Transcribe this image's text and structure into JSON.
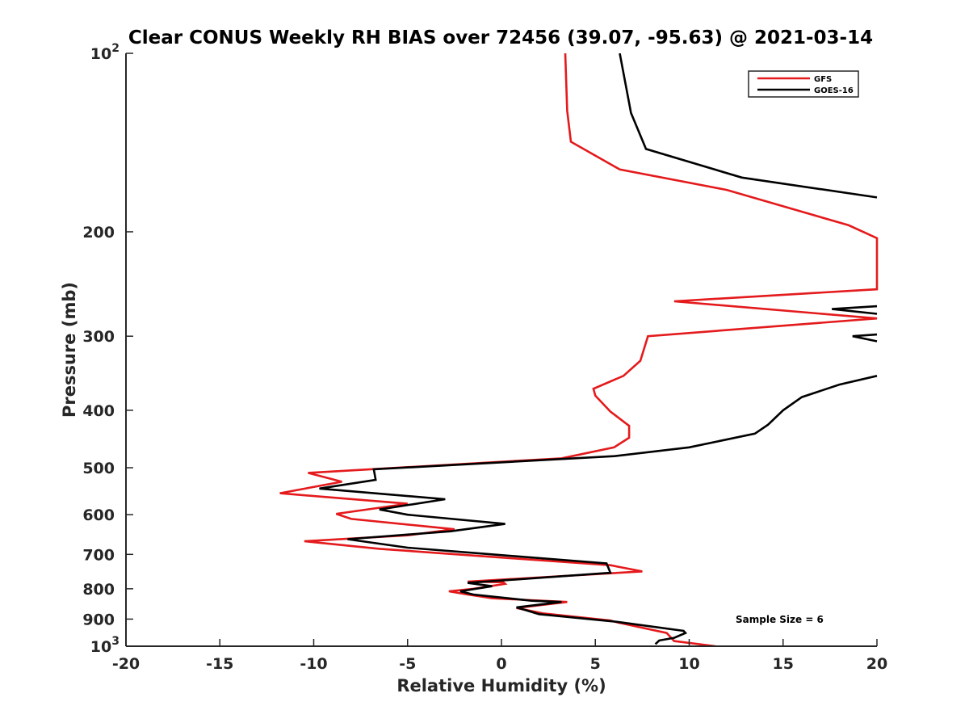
{
  "chart_data": {
    "type": "line",
    "title": "Clear CONUS Weekly RH BIAS over 72456 (39.07, -95.63) @ 2021-03-14",
    "xlabel": "Relative Humidity (%)",
    "ylabel": "Pressure (mb)",
    "xlim": [
      -20,
      20
    ],
    "ylim": [
      100,
      1000
    ],
    "yscale": "log",
    "y_reversed": true,
    "grid": false,
    "legend_position": "top-right",
    "x_ticks": [
      -20,
      -15,
      -10,
      -5,
      0,
      5,
      10,
      15,
      20
    ],
    "x_tick_labels": [
      "-20",
      "-15",
      "-10",
      "-5",
      "0",
      "5",
      "10",
      "15",
      "20"
    ],
    "y_ticks": [
      100,
      200,
      300,
      400,
      500,
      600,
      700,
      800,
      900,
      1000
    ],
    "y_tick_labels": [
      {
        "base": "10",
        "exp": "2"
      },
      {
        "base": "200",
        "exp": ""
      },
      {
        "base": "300",
        "exp": ""
      },
      {
        "base": "400",
        "exp": ""
      },
      {
        "base": "500",
        "exp": ""
      },
      {
        "base": "600",
        "exp": ""
      },
      {
        "base": "700",
        "exp": ""
      },
      {
        "base": "800",
        "exp": ""
      },
      {
        "base": "900",
        "exp": ""
      },
      {
        "base": "10",
        "exp": "3"
      }
    ],
    "annotation": "Sample Size = 6",
    "series": [
      {
        "name": "GFS",
        "color": "#e41a1c",
        "points": [
          [
            11.4,
            1000
          ],
          [
            9.2,
            980
          ],
          [
            8.8,
            950
          ],
          [
            6.2,
            912
          ],
          [
            5.8,
            905
          ],
          [
            2.2,
            880
          ],
          [
            0.8,
            862
          ],
          [
            3.5,
            842
          ],
          [
            -0.5,
            830
          ],
          [
            -1.8,
            818
          ],
          [
            -2.8,
            808
          ],
          [
            -1.5,
            800
          ],
          [
            0.2,
            785
          ],
          [
            0.1,
            780
          ],
          [
            -1.8,
            778
          ],
          [
            7.5,
            748
          ],
          [
            5.8,
            730
          ],
          [
            -1.0,
            705
          ],
          [
            -6.5,
            685
          ],
          [
            -10.5,
            665
          ],
          [
            -5.0,
            650
          ],
          [
            -2.5,
            635
          ],
          [
            -8.0,
            610
          ],
          [
            -8.8,
            598
          ],
          [
            -5.0,
            575
          ],
          [
            -11.8,
            552
          ],
          [
            -8.5,
            528
          ],
          [
            -10.3,
            510
          ],
          [
            3.2,
            482
          ],
          [
            6.0,
            462
          ],
          [
            6.8,
            445
          ],
          [
            6.8,
            425
          ],
          [
            5.8,
            402
          ],
          [
            5.0,
            378
          ],
          [
            4.9,
            368
          ],
          [
            6.5,
            350
          ],
          [
            7.4,
            330
          ],
          [
            7.8,
            300
          ],
          [
            20.0,
            280
          ],
          [
            9.2,
            262
          ],
          [
            20.0,
            250
          ],
          [
            20.0,
            205
          ],
          [
            18.5,
            195
          ],
          [
            12.0,
            170
          ],
          [
            6.3,
            157
          ],
          [
            3.7,
            141
          ],
          [
            3.5,
            125
          ],
          [
            3.4,
            100
          ]
        ]
      },
      {
        "name": "GOES-16",
        "color": "#000000",
        "points": [
          [
            8.2,
            992
          ],
          [
            8.4,
            978
          ],
          [
            9.2,
            968
          ],
          [
            9.8,
            950
          ],
          [
            9.7,
            942
          ],
          [
            6.2,
            910
          ],
          [
            2.0,
            883
          ],
          [
            0.8,
            860
          ],
          [
            3.2,
            842
          ],
          [
            1.6,
            838
          ],
          [
            -1.5,
            818
          ],
          [
            -2.2,
            808
          ],
          [
            -0.5,
            792
          ],
          [
            -1.8,
            782
          ],
          [
            5.8,
            752
          ],
          [
            5.6,
            725
          ],
          [
            -0.5,
            700
          ],
          [
            -5.0,
            682
          ],
          [
            -8.2,
            660
          ],
          [
            -2.7,
            640
          ],
          [
            0.2,
            622
          ],
          [
            -5.0,
            600
          ],
          [
            -6.5,
            588
          ],
          [
            -3.0,
            565
          ],
          [
            -9.7,
            542
          ],
          [
            -6.7,
            524
          ],
          [
            -6.8,
            503
          ],
          [
            6.0,
            478
          ],
          [
            10.0,
            462
          ],
          [
            13.5,
            438
          ],
          [
            14.2,
            423
          ],
          [
            15.0,
            400
          ],
          [
            16.0,
            380
          ],
          [
            18.0,
            362
          ],
          [
            20.0,
            350
          ]
        ]
      },
      {
        "name": "GOES-16",
        "color": "#000000",
        "points": [
          [
            20.0,
            267
          ],
          [
            17.6,
            270
          ],
          [
            20.0,
            275
          ]
        ]
      },
      {
        "name": "GOES-16",
        "color": "#000000",
        "points": [
          [
            20.0,
            298
          ],
          [
            18.7,
            300
          ],
          [
            20.0,
            306
          ]
        ]
      },
      {
        "name": "GOES-16",
        "color": "#000000",
        "points": [
          [
            20.0,
            175
          ],
          [
            12.8,
            162
          ],
          [
            7.7,
            145
          ],
          [
            6.9,
            126
          ],
          [
            6.3,
            100
          ]
        ]
      }
    ],
    "legend": [
      {
        "name": "GFS",
        "color": "#e41a1c"
      },
      {
        "name": "GOES-16",
        "color": "#000000"
      }
    ]
  }
}
